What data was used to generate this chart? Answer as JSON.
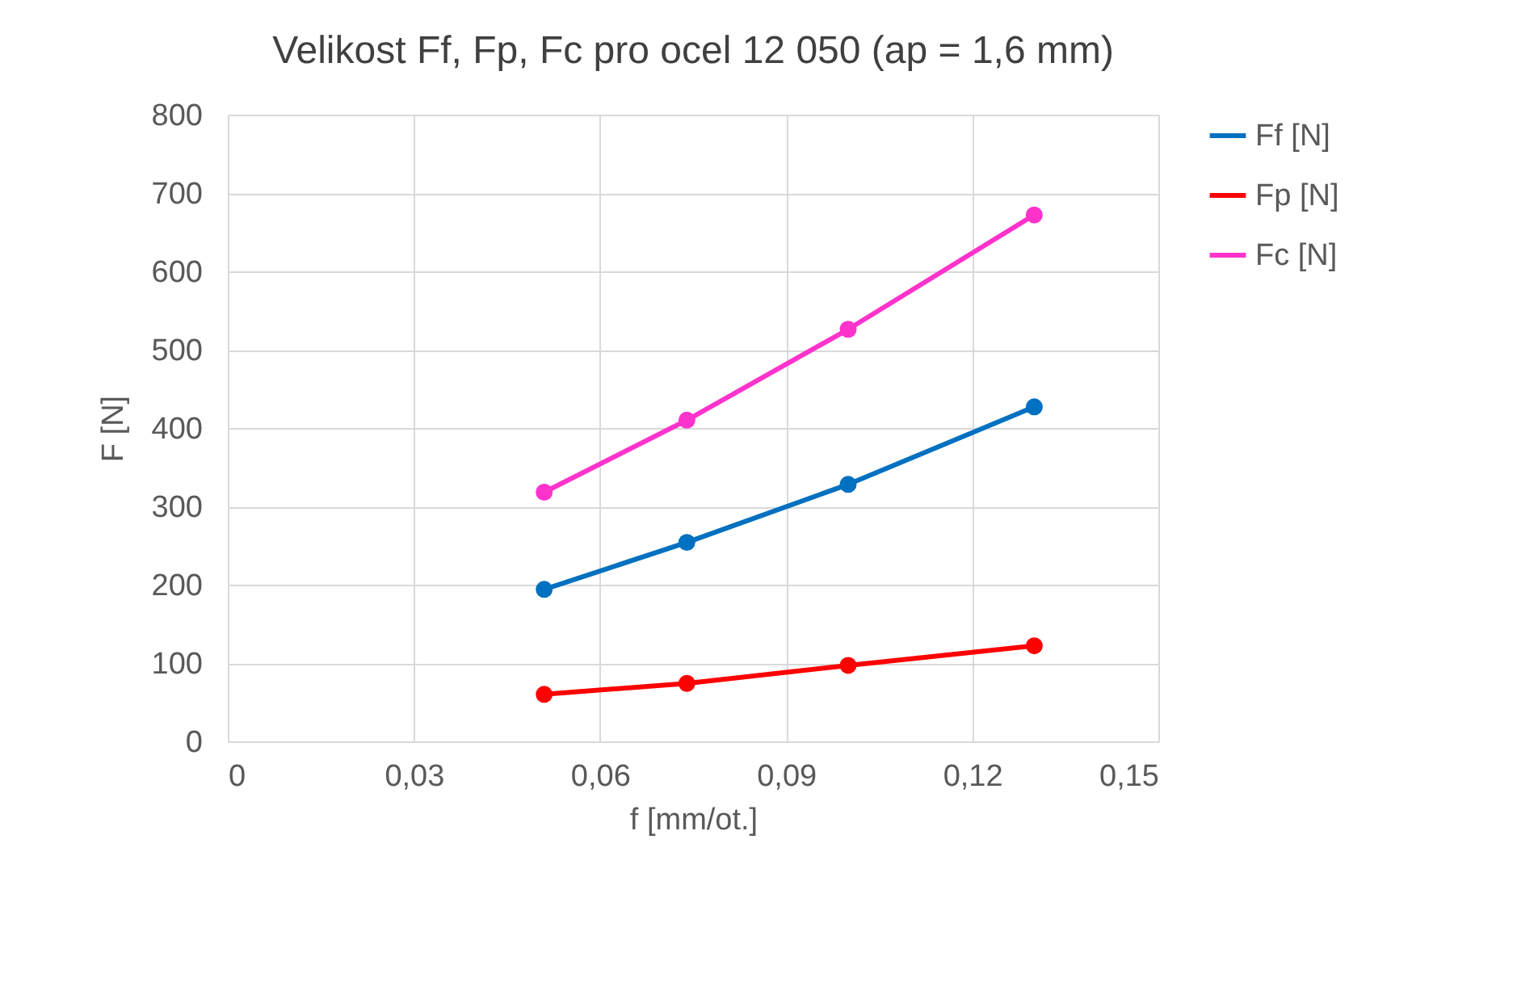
{
  "chart_data": {
    "type": "line",
    "title": "Velikost Ff, Fp, Fc pro ocel 12 050 (ap = 1,6 mm)",
    "xlabel": "f [mm/ot.]",
    "ylabel": "F [N]",
    "x": [
      0.051,
      0.074,
      0.1,
      0.13
    ],
    "series": [
      {
        "name": "Ff [N]",
        "color": "#0070c0",
        "values": [
          194,
          254,
          328,
          427
        ]
      },
      {
        "name": "Fp [N]",
        "color": "#ff0000",
        "values": [
          60,
          74,
          97,
          122
        ]
      },
      {
        "name": "Fc [N]",
        "color": "#ff33cc",
        "values": [
          318,
          410,
          526,
          672
        ]
      }
    ],
    "xlim": [
      0,
      0.15
    ],
    "xticks": [
      {
        "value": 0,
        "label": "0"
      },
      {
        "value": 0.03,
        "label": "0,03"
      },
      {
        "value": 0.06,
        "label": "0,06"
      },
      {
        "value": 0.09,
        "label": "0,09"
      },
      {
        "value": 0.12,
        "label": "0,12"
      },
      {
        "value": 0.15,
        "label": "0,15"
      }
    ],
    "ylim": [
      0,
      800
    ],
    "yticks": [
      0,
      100,
      200,
      300,
      400,
      500,
      600,
      700,
      800
    ],
    "grid": true,
    "legend": "right",
    "marker": "circle",
    "line_style": "solid"
  }
}
